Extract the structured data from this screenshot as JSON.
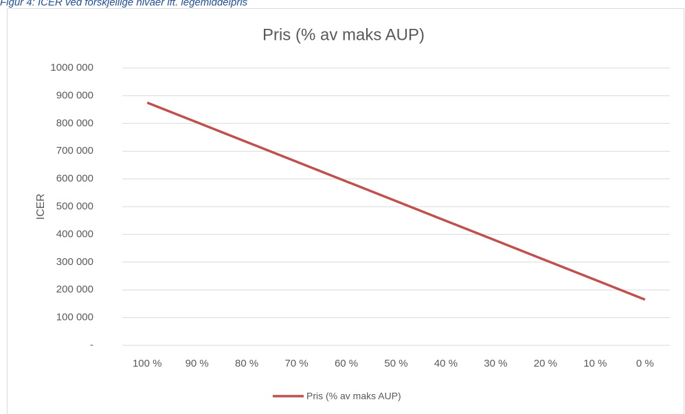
{
  "figure_caption": "Figur 4: ICER ved forskjellige nivåer ift. legemiddelpris",
  "chart_data": {
    "type": "line",
    "title": "Pris (% av maks AUP)",
    "y_label": "ICER",
    "categories": [
      "100 %",
      "90 %",
      "80 %",
      "70 %",
      "60 %",
      "50 %",
      "40 %",
      "30 %",
      "20 %",
      "10 %",
      "0 %"
    ],
    "series": [
      {
        "name": "Pris (% av maks AUP)",
        "color": "#c0504d",
        "values": [
          875000,
          804000,
          733000,
          662000,
          591000,
          520000,
          449000,
          378000,
          307000,
          236000,
          165000
        ]
      }
    ],
    "ylim": [
      0,
      1000000
    ],
    "yticks": [
      {
        "value": 0,
        "label": "-"
      },
      {
        "value": 100000,
        "label": "100 000"
      },
      {
        "value": 200000,
        "label": "200 000"
      },
      {
        "value": 300000,
        "label": "300 000"
      },
      {
        "value": 400000,
        "label": "400 000"
      },
      {
        "value": 500000,
        "label": "500 000"
      },
      {
        "value": 600000,
        "label": "600 000"
      },
      {
        "value": 700000,
        "label": "700 000"
      },
      {
        "value": 800000,
        "label": "800 000"
      },
      {
        "value": 900000,
        "label": "900 000"
      },
      {
        "value": 1000000,
        "label": "1000 000"
      }
    ],
    "grid": true,
    "legend": "bottom"
  }
}
